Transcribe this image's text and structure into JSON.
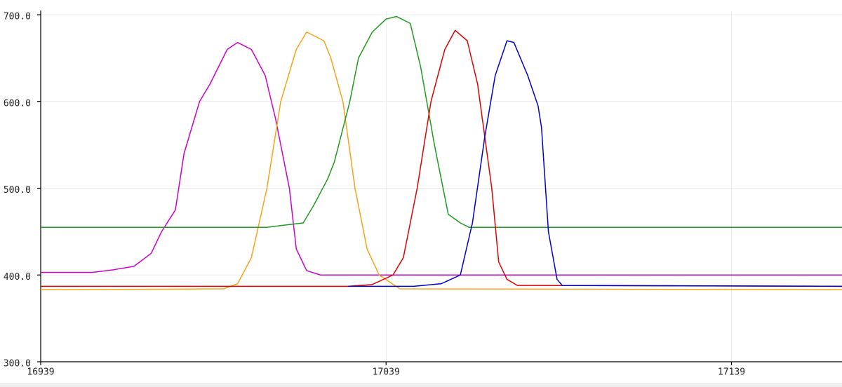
{
  "chart_data": {
    "type": "line",
    "xlim": [
      16939,
      17171
    ],
    "ylim": [
      300,
      700
    ],
    "xticks": [
      16939,
      17039,
      17139
    ],
    "yticks": [
      {
        "value": 300,
        "label": "300.0"
      },
      {
        "value": 400,
        "label": "400.0"
      },
      {
        "value": 500,
        "label": "500.0"
      },
      {
        "value": 600,
        "label": "600.0"
      },
      {
        "value": 700,
        "label": "700.0"
      }
    ],
    "grid": true,
    "series": [
      {
        "color": "#cc00cc",
        "x": [
          16939,
          16954,
          16960,
          16966,
          16971,
          16974,
          16978,
          16980.5,
          16985,
          16988,
          16993,
          16996,
          17000,
          17004,
          17007,
          17011,
          17013,
          17016,
          17020,
          17171
        ],
        "values": [
          403,
          403,
          406,
          410,
          425,
          450,
          475,
          540,
          600,
          620,
          660,
          668,
          660,
          630,
          580,
          500,
          430,
          405,
          400,
          400
        ]
      },
      {
        "color": "#f5a31a",
        "x": [
          16939,
          16992,
          16996,
          17000,
          17004.5,
          17008.5,
          17013,
          17016,
          17021,
          17023,
          17026.5,
          17030,
          17033.5,
          17037,
          17043,
          17171
        ],
        "values": [
          383,
          384,
          390,
          420,
          500,
          600,
          660,
          680,
          670,
          650,
          600,
          500,
          430,
          400,
          384,
          383
        ]
      },
      {
        "color": "#1f9a1f",
        "x": [
          16939,
          17004.5,
          17008.5,
          17015,
          17018,
          17022,
          17024,
          17028.5,
          17031,
          17035,
          17039,
          17042,
          17046,
          17049,
          17053,
          17057,
          17060.5,
          17063,
          17171
        ],
        "values": [
          455,
          455,
          457,
          460,
          480,
          510,
          530,
          600,
          650,
          680,
          695,
          698,
          690,
          640,
          550,
          470,
          460,
          455,
          455
        ]
      },
      {
        "color": "#e00000",
        "x": [
          16939,
          17028,
          17035,
          17041,
          17044,
          17048,
          17052,
          17056,
          17059,
          17062.5,
          17065.5,
          17069.6,
          17071.6,
          17074,
          17077,
          17171
        ],
        "values": [
          387,
          387,
          389,
          400,
          420,
          500,
          600,
          660,
          682,
          670,
          620,
          500,
          415,
          395,
          388,
          387
        ]
      },
      {
        "color": "#0000cc",
        "x": [
          17028,
          17047,
          17055,
          17060.5,
          17064,
          17067.6,
          17070.6,
          17074,
          17076,
          17080,
          17083,
          17084,
          17086,
          17088.5,
          17090,
          17171
        ],
        "values": [
          387,
          387,
          390,
          400,
          460,
          560,
          630,
          670,
          668,
          630,
          595,
          570,
          450,
          395,
          388,
          387
        ]
      }
    ]
  }
}
